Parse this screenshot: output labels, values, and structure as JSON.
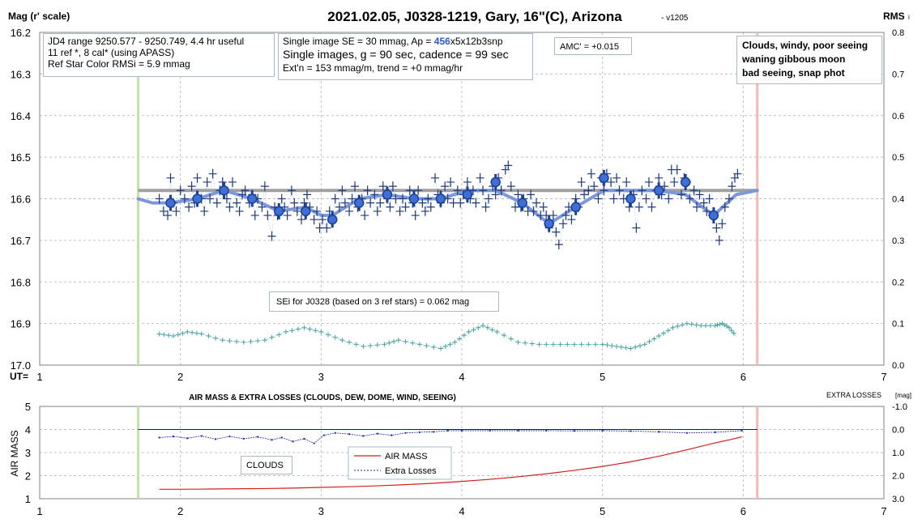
{
  "top_panel": {
    "title": "2021.02.05, J0328-1219, Gary, 16\"(C), Arizona",
    "version": "- v1205",
    "ylabel_left": "Mag (r' scale)",
    "ylabel_right": "RMS",
    "ylabel_right_sub": "i",
    "x_prefix": "UT=",
    "info_box_1": {
      "line1": "JD4 range 9250.577 - 9250.749, 4.4 hr useful",
      "line2": " 11 ref *, 8 cal* (using APASS)",
      "line3": "Ref Star Color RMSi = 5.9 mmag"
    },
    "info_box_2": {
      "line1_pre": "Single image SE = 30 mmag, Ap = ",
      "line1_hl": "456",
      "line1_post": "x5x12b3snp",
      "line2": "Single images, g = 90 sec, cadence = 99 sec",
      "line3": "Ext'n = 153 mmag/m, trend = +0 mmag/hr"
    },
    "amc_box": "AMC' = +0.015",
    "conditions_box": {
      "line1": "Clouds, windy, poor seeing",
      "line2": "waning gibbous moon",
      "line3": "bad seeing, snap phot"
    },
    "sei_box": "SEi for J0328 (based on 3 ref stars) = 0.062 mag"
  },
  "bottom_panel": {
    "title": "AIR MASS & EXTRA LOSSES (CLOUDS, DEW, DOME, WIND, SEEING)",
    "ylabel_left": "AIR MASS",
    "ylabel_right_main": "EXTRA LOSSES",
    "ylabel_right_unit": "[mag]",
    "clouds_box": "CLOUDS",
    "legend_airmass": "AIR MASS",
    "legend_losses": "Extra Losses"
  },
  "colors": {
    "points": "#1f3a7a",
    "means": "#3f6fd0",
    "trend": "#7c97dc",
    "ref_line": "#a0a0a0",
    "rms": "#4aa3a3",
    "start_line": "#c5e0a5",
    "end_line": "#f4b8b8",
    "airmass": "#d22020",
    "losses": "#1c2fa8",
    "grid": "#c0c0c0"
  },
  "chart_data": [
    {
      "type": "scatter",
      "xlabel": "UT=",
      "ylabel": "Mag (r' scale)",
      "xlim": [
        1,
        7
      ],
      "ylim": [
        17.0,
        16.2
      ],
      "y_ticks": [
        "16.2",
        "16.3",
        "16.4",
        "16.5",
        "16.6",
        "16.7",
        "16.8",
        "16.9",
        "17.0"
      ],
      "x_ticks": [
        "1",
        "2",
        "3",
        "4",
        "5",
        "6",
        "7"
      ],
      "y2label": "RMS i",
      "y2lim": [
        0,
        0.8
      ],
      "y2_ticks": [
        "0.8",
        "0.7",
        "0.6",
        "0.5",
        "0.4",
        "0.3",
        "0.2",
        "0.1",
        "0.0"
      ],
      "start_ut": 1.7,
      "end_ut": 6.1,
      "reference_mag": 16.58,
      "reference_range": [
        1.7,
        6.1
      ],
      "single_images": [
        [
          1.85,
          16.6
        ],
        [
          1.88,
          16.63
        ],
        [
          1.91,
          16.64
        ],
        [
          1.93,
          16.55
        ],
        [
          1.95,
          16.61
        ],
        [
          1.97,
          16.63
        ],
        [
          2.0,
          16.58
        ],
        [
          2.03,
          16.6
        ],
        [
          2.06,
          16.62
        ],
        [
          2.08,
          16.57
        ],
        [
          2.1,
          16.61
        ],
        [
          2.12,
          16.55
        ],
        [
          2.15,
          16.6
        ],
        [
          2.17,
          16.63
        ],
        [
          2.19,
          16.56
        ],
        [
          2.21,
          16.6
        ],
        [
          2.23,
          16.54
        ],
        [
          2.26,
          16.61
        ],
        [
          2.28,
          16.58
        ],
        [
          2.3,
          16.56
        ],
        [
          2.33,
          16.6
        ],
        [
          2.35,
          16.62
        ],
        [
          2.37,
          16.56
        ],
        [
          2.4,
          16.61
        ],
        [
          2.42,
          16.63
        ],
        [
          2.44,
          16.59
        ],
        [
          2.46,
          16.58
        ],
        [
          2.49,
          16.61
        ],
        [
          2.51,
          16.59
        ],
        [
          2.53,
          16.64
        ],
        [
          2.55,
          16.6
        ],
        [
          2.58,
          16.62
        ],
        [
          2.6,
          16.57
        ],
        [
          2.62,
          16.64
        ],
        [
          2.65,
          16.69
        ],
        [
          2.67,
          16.62
        ],
        [
          2.69,
          16.64
        ],
        [
          2.72,
          16.6
        ],
        [
          2.74,
          16.62
        ],
        [
          2.76,
          16.64
        ],
        [
          2.79,
          16.58
        ],
        [
          2.81,
          16.61
        ],
        [
          2.83,
          16.63
        ],
        [
          2.86,
          16.65
        ],
        [
          2.88,
          16.61
        ],
        [
          2.9,
          16.59
        ],
        [
          2.92,
          16.62
        ],
        [
          2.95,
          16.65
        ],
        [
          2.97,
          16.63
        ],
        [
          2.99,
          16.67
        ],
        [
          3.01,
          16.65
        ],
        [
          3.04,
          16.67
        ],
        [
          3.06,
          16.63
        ],
        [
          3.08,
          16.65
        ],
        [
          3.1,
          16.6
        ],
        [
          3.13,
          16.62
        ],
        [
          3.15,
          16.58
        ],
        [
          3.17,
          16.61
        ],
        [
          3.2,
          16.63
        ],
        [
          3.22,
          16.6
        ],
        [
          3.24,
          16.57
        ],
        [
          3.26,
          16.62
        ],
        [
          3.29,
          16.6
        ],
        [
          3.31,
          16.64
        ],
        [
          3.33,
          16.58
        ],
        [
          3.35,
          16.61
        ],
        [
          3.38,
          16.59
        ],
        [
          3.4,
          16.63
        ],
        [
          3.42,
          16.61
        ],
        [
          3.44,
          16.57
        ],
        [
          3.47,
          16.6
        ],
        [
          3.49,
          16.62
        ],
        [
          3.51,
          16.57
        ],
        [
          3.53,
          16.6
        ],
        [
          3.56,
          16.63
        ],
        [
          3.58,
          16.6
        ],
        [
          3.6,
          16.62
        ],
        [
          3.63,
          16.58
        ],
        [
          3.65,
          16.61
        ],
        [
          3.67,
          16.64
        ],
        [
          3.69,
          16.58
        ],
        [
          3.72,
          16.61
        ],
        [
          3.74,
          16.63
        ],
        [
          3.76,
          16.6
        ],
        [
          3.78,
          16.62
        ],
        [
          3.81,
          16.55
        ],
        [
          3.83,
          16.59
        ],
        [
          3.85,
          16.61
        ],
        [
          3.88,
          16.57
        ],
        [
          3.9,
          16.6
        ],
        [
          3.92,
          16.56
        ],
        [
          3.94,
          16.61
        ],
        [
          3.97,
          16.58
        ],
        [
          3.99,
          16.61
        ],
        [
          4.01,
          16.59
        ],
        [
          4.04,
          16.56
        ],
        [
          4.06,
          16.6
        ],
        [
          4.08,
          16.58
        ],
        [
          4.1,
          16.61
        ],
        [
          4.13,
          16.55
        ],
        [
          4.15,
          16.58
        ],
        [
          4.17,
          16.62
        ],
        [
          4.19,
          16.6
        ],
        [
          4.22,
          16.57
        ],
        [
          4.24,
          16.59
        ],
        [
          4.26,
          16.55
        ],
        [
          4.28,
          16.58
        ],
        [
          4.31,
          16.53
        ],
        [
          4.33,
          16.52
        ],
        [
          4.35,
          16.57
        ],
        [
          4.38,
          16.62
        ],
        [
          4.4,
          16.59
        ],
        [
          4.42,
          16.62
        ],
        [
          4.44,
          16.6
        ],
        [
          4.47,
          16.63
        ],
        [
          4.49,
          16.59
        ],
        [
          4.51,
          16.63
        ],
        [
          4.53,
          16.61
        ],
        [
          4.56,
          16.64
        ],
        [
          4.58,
          16.62
        ],
        [
          4.6,
          16.64
        ],
        [
          4.62,
          16.67
        ],
        [
          4.65,
          16.64
        ],
        [
          4.67,
          16.68
        ],
        [
          4.69,
          16.71
        ],
        [
          4.72,
          16.66
        ],
        [
          4.74,
          16.64
        ],
        [
          4.76,
          16.62
        ],
        [
          4.78,
          16.65
        ],
        [
          4.81,
          16.6
        ],
        [
          4.83,
          16.62
        ],
        [
          4.85,
          16.56
        ],
        [
          4.87,
          16.59
        ],
        [
          4.9,
          16.58
        ],
        [
          4.92,
          16.54
        ],
        [
          4.94,
          16.57
        ],
        [
          4.97,
          16.6
        ],
        [
          4.99,
          16.55
        ],
        [
          5.01,
          16.58
        ],
        [
          5.03,
          16.54
        ],
        [
          5.06,
          16.56
        ],
        [
          5.08,
          16.6
        ],
        [
          5.1,
          16.55
        ],
        [
          5.12,
          16.58
        ],
        [
          5.15,
          16.6
        ],
        [
          5.17,
          16.56
        ],
        [
          5.19,
          16.62
        ],
        [
          5.22,
          16.59
        ],
        [
          5.24,
          16.67
        ],
        [
          5.26,
          16.62
        ],
        [
          5.28,
          16.58
        ],
        [
          5.31,
          16.6
        ],
        [
          5.33,
          16.56
        ],
        [
          5.35,
          16.62
        ],
        [
          5.38,
          16.58
        ],
        [
          5.4,
          16.55
        ],
        [
          5.42,
          16.59
        ],
        [
          5.44,
          16.57
        ],
        [
          5.47,
          16.6
        ],
        [
          5.49,
          16.53
        ],
        [
          5.51,
          16.56
        ],
        [
          5.53,
          16.53
        ],
        [
          5.56,
          16.59
        ],
        [
          5.58,
          16.55
        ],
        [
          5.6,
          16.56
        ],
        [
          5.62,
          16.6
        ],
        [
          5.65,
          16.58
        ],
        [
          5.67,
          16.62
        ],
        [
          5.69,
          16.59
        ],
        [
          5.72,
          16.61
        ],
        [
          5.74,
          16.63
        ],
        [
          5.76,
          16.6
        ],
        [
          5.78,
          16.64
        ],
        [
          5.81,
          16.67
        ],
        [
          5.83,
          16.7
        ],
        [
          5.85,
          16.66
        ],
        [
          5.87,
          16.62
        ],
        [
          5.9,
          16.6
        ],
        [
          5.92,
          16.57
        ],
        [
          5.94,
          16.55
        ],
        [
          5.96,
          16.54
        ]
      ],
      "means": [
        [
          1.93,
          16.61
        ],
        [
          2.12,
          16.6
        ],
        [
          2.31,
          16.58
        ],
        [
          2.51,
          16.6
        ],
        [
          2.7,
          16.63
        ],
        [
          2.89,
          16.63
        ],
        [
          3.08,
          16.65
        ],
        [
          3.27,
          16.61
        ],
        [
          3.47,
          16.59
        ],
        [
          3.66,
          16.6
        ],
        [
          3.85,
          16.6
        ],
        [
          4.04,
          16.59
        ],
        [
          4.24,
          16.56
        ],
        [
          4.43,
          16.61
        ],
        [
          4.62,
          16.66
        ],
        [
          4.81,
          16.62
        ],
        [
          5.01,
          16.55
        ],
        [
          5.2,
          16.6
        ],
        [
          5.4,
          16.58
        ],
        [
          5.59,
          16.56
        ],
        [
          5.79,
          16.64
        ]
      ],
      "trend": [
        [
          1.7,
          16.6
        ],
        [
          1.8,
          16.61
        ],
        [
          1.93,
          16.61
        ],
        [
          2.12,
          16.6
        ],
        [
          2.31,
          16.58
        ],
        [
          2.51,
          16.6
        ],
        [
          2.7,
          16.63
        ],
        [
          2.89,
          16.62
        ],
        [
          3.0,
          16.64
        ],
        [
          3.08,
          16.64
        ],
        [
          3.27,
          16.6
        ],
        [
          3.47,
          16.59
        ],
        [
          3.66,
          16.6
        ],
        [
          3.85,
          16.6
        ],
        [
          4.04,
          16.58
        ],
        [
          4.24,
          16.58
        ],
        [
          4.43,
          16.61
        ],
        [
          4.62,
          16.66
        ],
        [
          4.81,
          16.62
        ],
        [
          5.01,
          16.58
        ],
        [
          5.2,
          16.58
        ],
        [
          5.4,
          16.58
        ],
        [
          5.59,
          16.59
        ],
        [
          5.79,
          16.64
        ],
        [
          5.95,
          16.59
        ],
        [
          6.1,
          16.58
        ]
      ],
      "rms": [
        [
          1.85,
          0.075
        ],
        [
          1.95,
          0.07
        ],
        [
          2.05,
          0.08
        ],
        [
          2.15,
          0.075
        ],
        [
          2.3,
          0.06
        ],
        [
          2.45,
          0.055
        ],
        [
          2.6,
          0.06
        ],
        [
          2.75,
          0.08
        ],
        [
          2.88,
          0.09
        ],
        [
          3.0,
          0.08
        ],
        [
          3.15,
          0.06
        ],
        [
          3.3,
          0.045
        ],
        [
          3.45,
          0.05
        ],
        [
          3.55,
          0.06
        ],
        [
          3.7,
          0.05
        ],
        [
          3.85,
          0.04
        ],
        [
          3.95,
          0.055
        ],
        [
          4.05,
          0.08
        ],
        [
          4.15,
          0.095
        ],
        [
          4.25,
          0.08
        ],
        [
          4.4,
          0.055
        ],
        [
          4.55,
          0.05
        ],
        [
          4.7,
          0.05
        ],
        [
          4.85,
          0.05
        ],
        [
          5.0,
          0.05
        ],
        [
          5.1,
          0.045
        ],
        [
          5.2,
          0.04
        ],
        [
          5.3,
          0.05
        ],
        [
          5.4,
          0.07
        ],
        [
          5.5,
          0.09
        ],
        [
          5.6,
          0.1
        ],
        [
          5.7,
          0.095
        ],
        [
          5.8,
          0.095
        ],
        [
          5.85,
          0.1
        ],
        [
          5.9,
          0.09
        ],
        [
          5.95,
          0.07
        ]
      ]
    },
    {
      "type": "line",
      "title": "AIR MASS & EXTRA LOSSES (CLOUDS, DEW, DOME, WIND, SEEING)",
      "ylabel": "AIR MASS",
      "xlim": [
        1,
        7
      ],
      "ylim": [
        1,
        5
      ],
      "y_ticks": [
        "1",
        "2",
        "3",
        "4",
        "5"
      ],
      "x_ticks": [
        "1",
        "2",
        "3",
        "4",
        "5",
        "6",
        "7"
      ],
      "y2label": "EXTRA LOSSES [mag]",
      "y2lim": [
        3.0,
        -1.0
      ],
      "y2_ticks": [
        "3.0",
        "2.0",
        "1.0",
        "0.0",
        "-1.0"
      ],
      "zero_losses": 0.0,
      "series": [
        {
          "name": "AIR MASS",
          "x": [
            1.85,
            2.0,
            2.2,
            2.4,
            2.6,
            2.8,
            3.0,
            3.2,
            3.4,
            3.6,
            3.8,
            4.0,
            4.2,
            4.4,
            4.6,
            4.8,
            5.0,
            5.2,
            5.4,
            5.6,
            5.8,
            5.9,
            5.99
          ],
          "y": [
            1.41,
            1.41,
            1.42,
            1.43,
            1.44,
            1.46,
            1.49,
            1.52,
            1.56,
            1.61,
            1.67,
            1.75,
            1.84,
            1.95,
            2.08,
            2.23,
            2.4,
            2.6,
            2.84,
            3.12,
            3.42,
            3.55,
            3.68
          ]
        },
        {
          "name": "Extra Losses",
          "x": [
            1.85,
            1.95,
            2.05,
            2.15,
            2.25,
            2.35,
            2.45,
            2.55,
            2.65,
            2.72,
            2.8,
            2.88,
            2.95,
            3.02,
            3.1,
            3.2,
            3.3,
            3.4,
            3.5,
            3.6,
            3.7,
            3.8,
            3.9,
            4.0,
            4.2,
            4.4,
            4.6,
            4.8,
            5.0,
            5.2,
            5.4,
            5.6,
            5.8,
            5.99
          ],
          "y": [
            0.35,
            0.3,
            0.38,
            0.28,
            0.42,
            0.3,
            0.4,
            0.32,
            0.45,
            0.35,
            0.52,
            0.4,
            0.6,
            0.25,
            0.15,
            0.2,
            0.28,
            0.18,
            0.25,
            0.15,
            0.12,
            0.1,
            0.05,
            0.05,
            0.05,
            0.05,
            0.05,
            0.06,
            0.05,
            0.07,
            0.1,
            0.15,
            0.12,
            0.05
          ]
        }
      ]
    }
  ]
}
